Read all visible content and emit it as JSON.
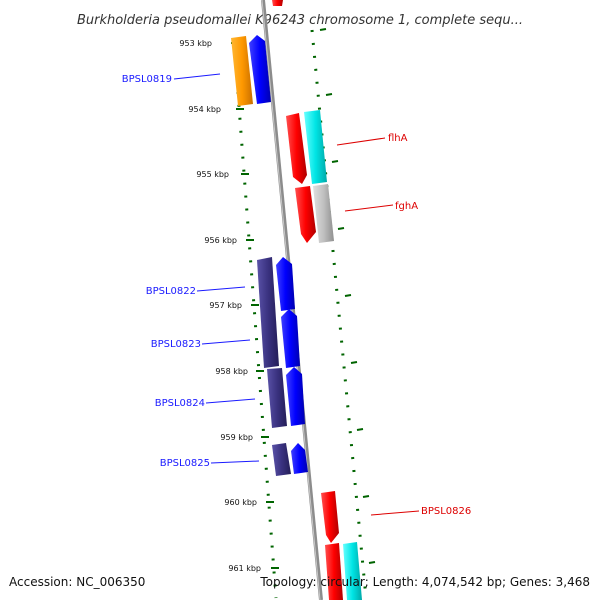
{
  "map": {
    "title": "Burkholderia pseudomallei K96243 chromosome 1, complete sequ...",
    "accession": "Accession: NC_006350",
    "summary": "Topology: circular; Length: 4,074,542 bp; Genes: 3,468"
  },
  "ticks": [
    {
      "kbp": 953,
      "label": "953 kbp"
    },
    {
      "kbp": 954,
      "label": "954 kbp"
    },
    {
      "kbp": 955,
      "label": "955 kbp"
    },
    {
      "kbp": 956,
      "label": "956 kbp"
    },
    {
      "kbp": 957,
      "label": "957 kbp"
    },
    {
      "kbp": 958,
      "label": "958 kbp"
    },
    {
      "kbp": 959,
      "label": "959 kbp"
    },
    {
      "kbp": 960,
      "label": "960 kbp"
    },
    {
      "kbp": 961,
      "label": "961 kbp"
    }
  ],
  "gene_labels": [
    {
      "name": "BPSL0819",
      "color": "#1a1aff"
    },
    {
      "name": "flhA",
      "color": "#dd0000"
    },
    {
      "name": "fghA",
      "color": "#dd0000"
    },
    {
      "name": "BPSL0822",
      "color": "#1a1aff"
    },
    {
      "name": "BPSL0823",
      "color": "#1a1aff"
    },
    {
      "name": "BPSL0824",
      "color": "#1a1aff"
    },
    {
      "name": "BPSL0825",
      "color": "#1a1aff"
    },
    {
      "name": "BPSL0826",
      "color": "#dd0000"
    }
  ],
  "colors": {
    "backbone": "#8c8c8c",
    "ticks": "#006400",
    "orange": "#ff9900",
    "blue": "#0000ff",
    "red": "#ff0000",
    "cyan": "#00e5e5",
    "gray": "#c0c0c0",
    "purple": "#3a3280"
  }
}
